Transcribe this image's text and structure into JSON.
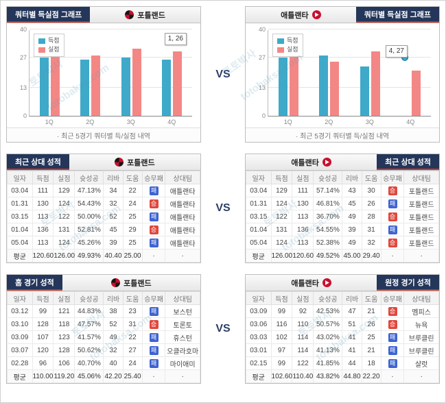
{
  "page": {
    "vs": "VS"
  },
  "watermark": {
    "kr": "토토박사",
    "en": "totobaksa.com"
  },
  "colors": {
    "header_navy": "#24365a",
    "header_accent_red": "#c0392b",
    "win_badge": "#e0483e",
    "loss_badge": "#3f64d1",
    "bar_score": "#3fa9c9",
    "bar_concede": "#f38786"
  },
  "top_section": {
    "left": {
      "title": "쿼터별 득실점 그래프",
      "team": "포틀랜드",
      "note": "· 최근 5경기 쿼터별 득/실점 내역"
    },
    "right": {
      "title": "쿼터별 득실점 그래프",
      "team": "애틀랜타",
      "note": "· 최근 5경기 쿼터별 득/실점 내역"
    }
  },
  "chart_data": [
    {
      "type": "bar",
      "title": "포틀랜드 최근 5경기 쿼터별 득/실점",
      "categories": [
        "1Q",
        "2Q",
        "3Q",
        "4Q"
      ],
      "series": [
        {
          "name": "득점",
          "color": "#3fa9c9",
          "values": [
            27,
            26,
            27,
            26
          ]
        },
        {
          "name": "실점",
          "color": "#f38786",
          "values": [
            28,
            28,
            31,
            30
          ]
        }
      ],
      "ylim": [
        0,
        40
      ],
      "yticks": [
        0,
        13,
        27,
        40
      ],
      "grid": true,
      "legend_position": "top-left",
      "tooltip": {
        "text": "1, 26",
        "anchor": "4Q"
      }
    },
    {
      "type": "bar",
      "title": "애틀랜타 최근 5경기 쿼터별 득/실점",
      "categories": [
        "1Q",
        "2Q",
        "3Q",
        "4Q"
      ],
      "series": [
        {
          "name": "득점",
          "color": "#3fa9c9",
          "values": [
            27,
            28,
            23,
            27
          ]
        },
        {
          "name": "실점",
          "color": "#f38786",
          "values": [
            28,
            25,
            30,
            21
          ]
        }
      ],
      "ylim": [
        0,
        40
      ],
      "yticks": [
        0,
        13,
        27,
        40
      ],
      "grid": true,
      "legend_position": "top-left",
      "tooltip": {
        "text": "4, 27",
        "anchor": "4Q"
      },
      "marker": {
        "series": 0,
        "index": 3
      }
    }
  ],
  "tables": {
    "h2h_left": {
      "title": "최근 상대 성적",
      "team": "포틀랜드",
      "columns": [
        "일자",
        "득점",
        "실점",
        "슛성공",
        "리바",
        "도움",
        "승무패",
        "상대팀"
      ],
      "rows": [
        [
          "03.04",
          "111",
          "129",
          "47.13%",
          "34",
          "22",
          "패",
          "애틀랜타"
        ],
        [
          "01.31",
          "130",
          "124",
          "54.43%",
          "32",
          "24",
          "승",
          "애틀랜타"
        ],
        [
          "03.15",
          "113",
          "122",
          "50.00%",
          "52",
          "25",
          "패",
          "애틀랜타"
        ],
        [
          "01.04",
          "136",
          "131",
          "52.81%",
          "45",
          "29",
          "승",
          "애틀랜타"
        ],
        [
          "05.04",
          "113",
          "124",
          "45.26%",
          "39",
          "25",
          "패",
          "애틀랜타"
        ]
      ],
      "avg": [
        "평균",
        "120.60",
        "126.00",
        "49.93%",
        "40.40",
        "25.00",
        "·",
        "·"
      ]
    },
    "h2h_right": {
      "title": "최근 상대 성적",
      "team": "애틀랜타",
      "columns": [
        "일자",
        "득점",
        "실점",
        "슛성공",
        "리바",
        "도움",
        "승무패",
        "상대팀"
      ],
      "rows": [
        [
          "03.04",
          "129",
          "111",
          "57.14%",
          "43",
          "30",
          "승",
          "포틀랜드"
        ],
        [
          "01.31",
          "124",
          "130",
          "46.81%",
          "45",
          "26",
          "패",
          "포틀랜드"
        ],
        [
          "03.15",
          "122",
          "113",
          "36.70%",
          "49",
          "28",
          "승",
          "포틀랜드"
        ],
        [
          "01.04",
          "131",
          "136",
          "54.55%",
          "39",
          "31",
          "패",
          "포틀랜드"
        ],
        [
          "05.04",
          "124",
          "113",
          "52.38%",
          "49",
          "32",
          "승",
          "포틀랜드"
        ]
      ],
      "avg": [
        "평균",
        "126.00",
        "120.60",
        "49.52%",
        "45.00",
        "29.40",
        "·",
        "·"
      ]
    },
    "home_left": {
      "title": "홈 경기 성적",
      "team": "포틀랜드",
      "columns": [
        "일자",
        "득점",
        "실점",
        "슛성공",
        "리바",
        "도움",
        "승무패",
        "상대팀"
      ],
      "rows": [
        [
          "03.12",
          "99",
          "121",
          "44.83%",
          "38",
          "23",
          "패",
          "보스턴"
        ],
        [
          "03.10",
          "128",
          "118",
          "47.57%",
          "52",
          "31",
          "승",
          "토론토"
        ],
        [
          "03.09",
          "107",
          "123",
          "41.57%",
          "49",
          "22",
          "패",
          "휴스턴"
        ],
        [
          "03.07",
          "120",
          "128",
          "50.62%",
          "32",
          "27",
          "패",
          "오클라호마"
        ],
        [
          "02.28",
          "96",
          "106",
          "40.70%",
          "40",
          "24",
          "패",
          "마이애미"
        ]
      ],
      "avg": [
        "평균",
        "110.00",
        "119.20",
        "45.06%",
        "42.20",
        "25.40",
        "·",
        "·"
      ]
    },
    "away_right": {
      "title": "원정 경기 성적",
      "team": "애틀랜타",
      "columns": [
        "일자",
        "득점",
        "실점",
        "슛성공",
        "리바",
        "도움",
        "승무패",
        "상대팀"
      ],
      "rows": [
        [
          "03.09",
          "99",
          "92",
          "42.53%",
          "47",
          "21",
          "승",
          "멤피스"
        ],
        [
          "03.06",
          "116",
          "110",
          "50.57%",
          "51",
          "26",
          "승",
          "뉴욕"
        ],
        [
          "03.03",
          "102",
          "114",
          "43.02%",
          "41",
          "25",
          "패",
          "브루클린"
        ],
        [
          "03.01",
          "97",
          "114",
          "41.13%",
          "41",
          "21",
          "패",
          "브루클린"
        ],
        [
          "02.15",
          "99",
          "122",
          "41.85%",
          "44",
          "18",
          "패",
          "샬럿"
        ]
      ],
      "avg": [
        "평균",
        "102.60",
        "110.40",
        "43.82%",
        "44.80",
        "22.20",
        "·",
        "·"
      ]
    }
  }
}
